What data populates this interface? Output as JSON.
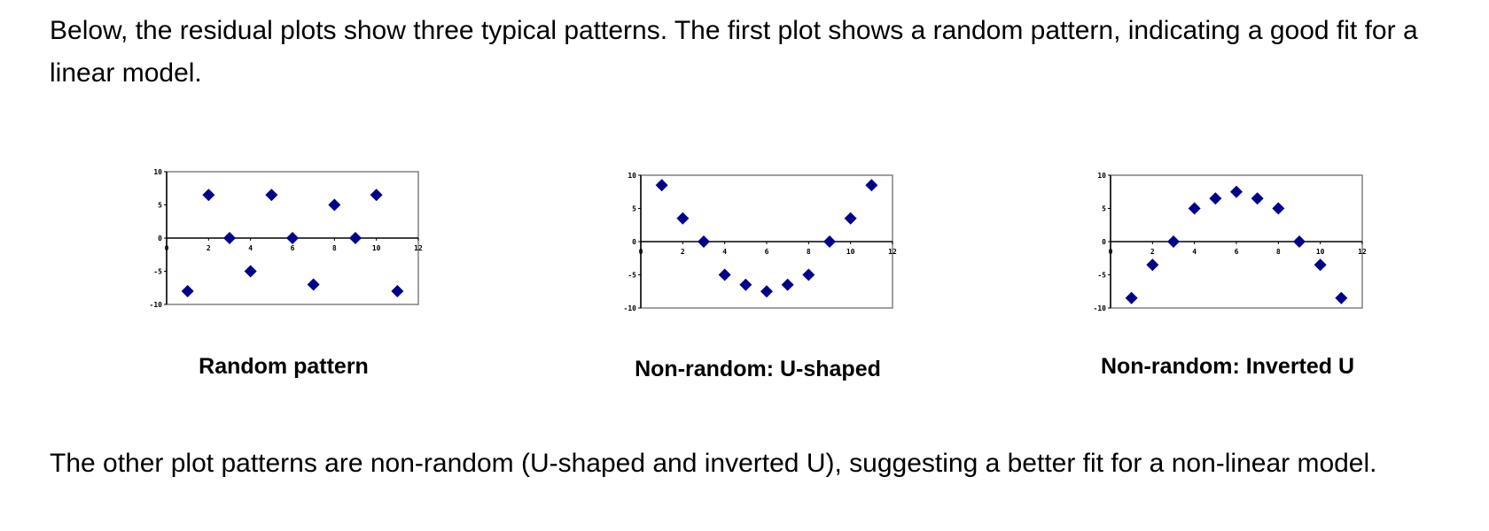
{
  "intro_text": "Below, the residual plots show three typical patterns. The first plot shows a random pattern, indicating a good fit for a linear model.",
  "outro_text": "The other plot patterns are non-random (U-shaped and inverted U), suggesting a better fit for a non-linear model.",
  "colors": {
    "marker": "#00008B",
    "frame": "#808080",
    "axis": "#000000"
  },
  "chart_data": [
    {
      "type": "scatter",
      "caption": "Random pattern",
      "marker": "diamond",
      "x": [
        1,
        2,
        3,
        4,
        5,
        6,
        7,
        8,
        9,
        10,
        11
      ],
      "y": [
        -8,
        6.5,
        0,
        -5,
        6.5,
        0,
        -7,
        5,
        0,
        6.5,
        -8
      ],
      "xlim": [
        0,
        12
      ],
      "ylim": [
        -10,
        10
      ],
      "x_ticks": [
        0,
        2,
        4,
        6,
        8,
        10,
        12
      ],
      "y_ticks": [
        10,
        5,
        0,
        -5,
        -10
      ],
      "x_tick_labels": [
        "0",
        "2",
        "4",
        "6",
        "8",
        "10",
        "12"
      ],
      "y_tick_labels": [
        "10",
        "5",
        "0",
        "-5",
        "-10"
      ],
      "grid": false,
      "legend": false
    },
    {
      "type": "scatter",
      "caption": "Non-random: U-shaped",
      "marker": "diamond",
      "x": [
        1,
        2,
        3,
        4,
        5,
        6,
        7,
        8,
        9,
        10,
        11
      ],
      "y": [
        8.5,
        3.5,
        0,
        -5,
        -6.5,
        -7.5,
        -6.5,
        -5,
        0,
        3.5,
        8.5
      ],
      "xlim": [
        0,
        12
      ],
      "ylim": [
        -10,
        10
      ],
      "x_ticks": [
        0,
        2,
        4,
        6,
        8,
        10,
        12
      ],
      "y_ticks": [
        10,
        5,
        0,
        -5,
        -10
      ],
      "x_tick_labels": [
        "0",
        "2",
        "4",
        "6",
        "8",
        "10",
        "12"
      ],
      "y_tick_labels": [
        "10",
        "5",
        "0",
        "-5",
        "-10"
      ],
      "grid": false,
      "legend": false
    },
    {
      "type": "scatter",
      "caption": "Non-random: Inverted U",
      "marker": "diamond",
      "x": [
        1,
        2,
        3,
        4,
        5,
        6,
        7,
        8,
        9,
        10,
        11
      ],
      "y": [
        -8.5,
        -3.5,
        0,
        5,
        6.5,
        7.5,
        6.5,
        5,
        0,
        -3.5,
        -8.5
      ],
      "xlim": [
        0,
        12
      ],
      "ylim": [
        -10,
        10
      ],
      "x_ticks": [
        0,
        2,
        4,
        6,
        8,
        10,
        12
      ],
      "y_ticks": [
        10,
        5,
        0,
        -5,
        -10
      ],
      "x_tick_labels": [
        "0",
        "2",
        "4",
        "6",
        "8",
        "10",
        "12"
      ],
      "y_tick_labels": [
        "10",
        "5",
        "0",
        "-5",
        "-10"
      ],
      "grid": false,
      "legend": false
    }
  ]
}
